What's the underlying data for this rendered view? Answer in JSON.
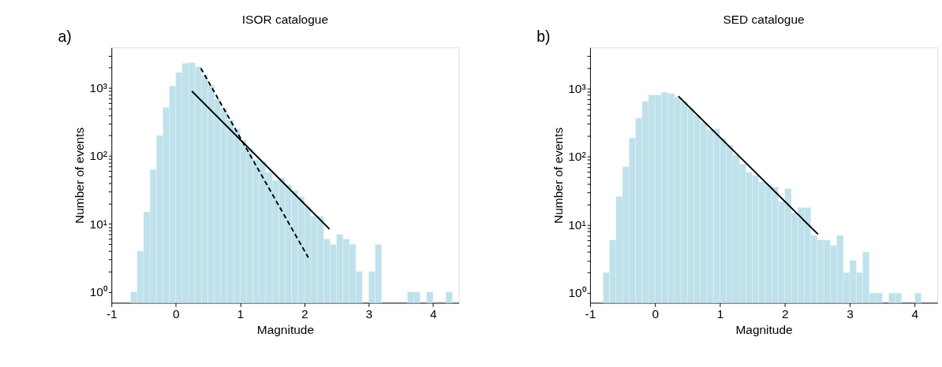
{
  "chart_data": [
    {
      "type": "histogram",
      "title": "ISOR catalogue",
      "xlabel": "Magnitude",
      "ylabel": "Number of events",
      "annotations": [
        "a)"
      ],
      "color": "#bfe1eb",
      "log": true,
      "grid": false,
      "bins": [
        -0.7,
        -0.6,
        -0.5,
        -0.4,
        -0.3,
        -0.2,
        -0.1,
        0.0,
        0.1,
        0.2,
        0.3,
        0.4,
        0.5,
        0.6,
        0.7,
        0.8,
        0.9,
        1.0,
        1.1,
        1.2,
        1.3,
        1.4,
        1.5,
        1.6,
        1.7,
        1.8,
        1.9,
        2.0,
        2.1,
        2.2,
        2.3,
        2.4,
        2.5,
        2.6,
        2.7,
        2.8,
        2.9,
        3.0,
        3.1,
        3.2,
        3.3,
        3.4,
        3.5,
        3.6,
        3.7,
        3.8,
        3.9,
        4.0,
        4.1,
        4.2,
        4.3
      ],
      "values": [
        1,
        4,
        15,
        63,
        200,
        520,
        1070,
        1700,
        2300,
        2370,
        2070,
        1570,
        1100,
        690,
        500,
        340,
        250,
        170,
        127,
        89,
        84,
        58,
        44,
        48,
        38,
        31,
        25,
        18,
        13,
        13,
        6,
        5,
        7,
        6,
        5,
        2,
        null,
        2,
        5,
        null,
        null,
        null,
        null,
        1,
        1,
        null,
        1,
        null,
        null,
        1
      ],
      "series": [
        {
          "type": "line",
          "color": "#000000",
          "line_style": "solid",
          "x": [
            0.25,
            2.39
          ],
          "values": [
            900,
            8.4
          ]
        },
        {
          "type": "line",
          "color": "#000000",
          "line_style": "dashed",
          "x": [
            0.39,
            2.06
          ],
          "values": [
            1950,
            3.2
          ]
        }
      ],
      "xlim": [
        -1.0,
        4.4
      ],
      "ylim": [
        0.69,
        3950
      ],
      "xticks": [
        -1,
        0,
        1,
        2,
        3,
        4
      ],
      "yticks": [
        {
          "value": 1,
          "label": "10⁰"
        },
        {
          "value": 2,
          "label": null
        },
        {
          "value": 3,
          "label": null
        },
        {
          "value": 4,
          "label": null
        },
        {
          "value": 5,
          "label": null
        },
        {
          "value": 6,
          "label": null
        },
        {
          "value": 7,
          "label": null
        },
        {
          "value": 8,
          "label": null
        },
        {
          "value": 9,
          "label": null
        },
        {
          "value": 10,
          "label": "10¹"
        },
        {
          "value": 20,
          "label": null
        },
        {
          "value": 30,
          "label": null
        },
        {
          "value": 40,
          "label": null
        },
        {
          "value": 50,
          "label": null
        },
        {
          "value": 60,
          "label": null
        },
        {
          "value": 70,
          "label": null
        },
        {
          "value": 80,
          "label": null
        },
        {
          "value": 90,
          "label": null
        },
        {
          "value": 100,
          "label": "10²"
        },
        {
          "value": 200,
          "label": null
        },
        {
          "value": 300,
          "label": null
        },
        {
          "value": 400,
          "label": null
        },
        {
          "value": 500,
          "label": null
        },
        {
          "value": 600,
          "label": null
        },
        {
          "value": 700,
          "label": null
        },
        {
          "value": 800,
          "label": null
        },
        {
          "value": 900,
          "label": null
        },
        {
          "value": 1000,
          "label": "10³"
        },
        {
          "value": 2000,
          "label": null
        },
        {
          "value": 3000,
          "label": null
        }
      ]
    },
    {
      "type": "histogram",
      "title": "SED catalogue",
      "xlabel": "Magnitude",
      "ylabel": "Number of events",
      "annotations": [
        "b)"
      ],
      "color": "#bfe1eb",
      "log": true,
      "grid": false,
      "bins": [
        -0.8,
        -0.7,
        -0.6,
        -0.5,
        -0.4,
        -0.3,
        -0.2,
        -0.1,
        0.0,
        0.1,
        0.2,
        0.3,
        0.4,
        0.5,
        0.6,
        0.7,
        0.8,
        0.9,
        1.0,
        1.1,
        1.2,
        1.3,
        1.4,
        1.5,
        1.6,
        1.7,
        1.8,
        1.9,
        2.0,
        2.1,
        2.2,
        2.3,
        2.4,
        2.5,
        2.6,
        2.7,
        2.8,
        2.9,
        3.0,
        3.1,
        3.2,
        3.3,
        3.4,
        3.5,
        3.6,
        3.7,
        3.8,
        3.9,
        4.0,
        4.1
      ],
      "values": [
        2,
        6,
        26,
        71,
        187,
        370,
        645,
        800,
        800,
        880,
        840,
        740,
        645,
        510,
        400,
        320,
        250,
        256,
        184,
        148,
        105,
        78,
        59,
        53,
        43,
        39,
        36,
        22,
        34,
        15,
        18,
        18,
        7,
        6,
        6,
        5,
        7,
        2,
        3,
        2,
        4,
        1,
        1,
        null,
        1,
        1,
        null,
        null,
        1
      ],
      "series": [
        {
          "type": "line",
          "color": "#000000",
          "line_style": "solid",
          "x": [
            0.36,
            2.51
          ],
          "values": [
            770,
            7.3
          ]
        }
      ],
      "xlim": [
        -1.0,
        4.35
      ],
      "ylim": [
        0.72,
        3980
      ],
      "xticks": [
        -1,
        0,
        1,
        2,
        3,
        4
      ],
      "yticks": [
        {
          "value": 1,
          "label": "10⁰"
        },
        {
          "value": 2,
          "label": null
        },
        {
          "value": 3,
          "label": null
        },
        {
          "value": 4,
          "label": null
        },
        {
          "value": 5,
          "label": null
        },
        {
          "value": 6,
          "label": null
        },
        {
          "value": 7,
          "label": null
        },
        {
          "value": 8,
          "label": null
        },
        {
          "value": 9,
          "label": null
        },
        {
          "value": 10,
          "label": "10¹"
        },
        {
          "value": 20,
          "label": null
        },
        {
          "value": 30,
          "label": null
        },
        {
          "value": 40,
          "label": null
        },
        {
          "value": 50,
          "label": null
        },
        {
          "value": 60,
          "label": null
        },
        {
          "value": 70,
          "label": null
        },
        {
          "value": 80,
          "label": null
        },
        {
          "value": 90,
          "label": null
        },
        {
          "value": 100,
          "label": "10²"
        },
        {
          "value": 200,
          "label": null
        },
        {
          "value": 300,
          "label": null
        },
        {
          "value": 400,
          "label": null
        },
        {
          "value": 500,
          "label": null
        },
        {
          "value": 600,
          "label": null
        },
        {
          "value": 700,
          "label": null
        },
        {
          "value": 800,
          "label": null
        },
        {
          "value": 900,
          "label": null
        },
        {
          "value": 1000,
          "label": "10³"
        },
        {
          "value": 2000,
          "label": null
        },
        {
          "value": 3000,
          "label": null
        }
      ]
    }
  ]
}
